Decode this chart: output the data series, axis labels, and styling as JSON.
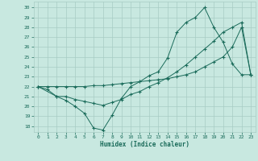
{
  "xlabel": "Humidex (Indice chaleur)",
  "bg_color": "#c8e8e0",
  "grid_color": "#a8ccc4",
  "line_color": "#1a6b5a",
  "xlim": [
    -0.5,
    23.5
  ],
  "ylim": [
    17.4,
    30.6
  ],
  "xticks": [
    0,
    1,
    2,
    3,
    4,
    5,
    6,
    7,
    8,
    9,
    10,
    11,
    12,
    13,
    14,
    15,
    16,
    17,
    18,
    19,
    20,
    21,
    22,
    23
  ],
  "yticks": [
    18,
    19,
    20,
    21,
    22,
    23,
    24,
    25,
    26,
    27,
    28,
    29,
    30
  ],
  "line1_x": [
    0,
    1,
    2,
    3,
    4,
    5,
    6,
    7,
    8,
    9,
    10,
    11,
    12,
    13,
    14,
    15,
    16,
    17,
    18,
    19,
    20,
    21,
    22,
    23
  ],
  "line1_y": [
    22.0,
    21.7,
    21.0,
    20.6,
    20.0,
    19.3,
    17.8,
    17.6,
    19.1,
    20.8,
    22.0,
    22.5,
    23.1,
    23.5,
    24.9,
    27.5,
    28.5,
    29.0,
    30.0,
    28.0,
    26.5,
    24.3,
    23.2,
    23.2
  ],
  "line2_x": [
    0,
    1,
    2,
    3,
    4,
    5,
    6,
    7,
    8,
    9,
    10,
    11,
    12,
    13,
    14,
    15,
    16,
    17,
    18,
    19,
    20,
    21,
    22,
    23
  ],
  "line2_y": [
    22.0,
    22.0,
    22.0,
    22.0,
    22.0,
    22.0,
    22.1,
    22.1,
    22.2,
    22.3,
    22.4,
    22.5,
    22.6,
    22.7,
    22.8,
    23.0,
    23.2,
    23.5,
    24.0,
    24.5,
    25.0,
    26.0,
    28.0,
    23.2
  ],
  "line3_x": [
    0,
    2,
    3,
    4,
    5,
    6,
    7,
    8,
    9,
    10,
    11,
    12,
    13,
    14,
    15,
    16,
    17,
    18,
    19,
    20,
    21,
    22,
    23
  ],
  "line3_y": [
    22.0,
    21.0,
    21.0,
    20.7,
    20.5,
    20.3,
    20.1,
    20.4,
    20.7,
    21.2,
    21.5,
    22.0,
    22.4,
    22.9,
    23.5,
    24.2,
    25.0,
    25.8,
    26.6,
    27.5,
    28.0,
    28.5,
    23.2
  ]
}
